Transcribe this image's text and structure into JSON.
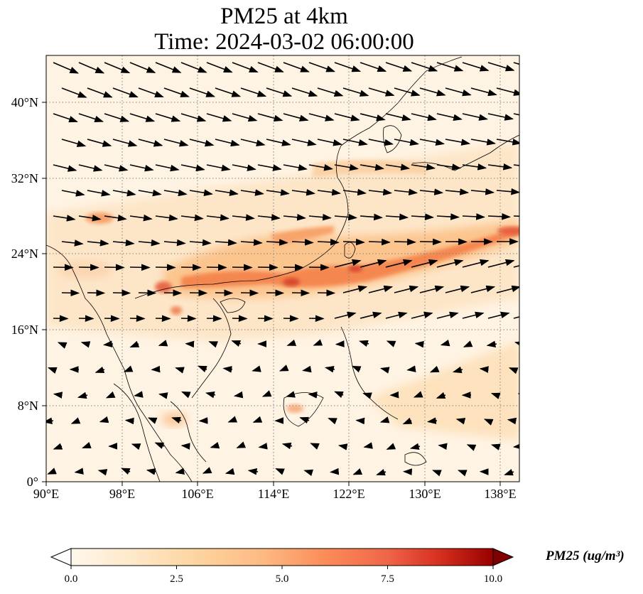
{
  "title": {
    "line1": "PM25 at 4km",
    "line2": "Time: 2024-03-02 06:00:00"
  },
  "axes": {
    "lon_ticks": [
      "90°E",
      "98°E",
      "106°E",
      "114°E",
      "122°E",
      "130°E",
      "138°E"
    ],
    "lat_ticks": [
      "0°",
      "8°N",
      "16°N",
      "24°N",
      "32°N",
      "40°N"
    ],
    "lon_range": [
      90,
      140
    ],
    "lat_range": [
      0,
      45
    ]
  },
  "colorbar": {
    "label": "PM25 (ug/m³)",
    "ticks": [
      "0.0",
      "2.5",
      "5.0",
      "7.5",
      "10.0"
    ],
    "range": [
      0,
      10
    ],
    "colormap": "OrRd",
    "extend": "both"
  },
  "colors": {
    "background": "#fff5e8",
    "low": "#fff7ec",
    "mid": "#fc8d59",
    "high": "#7f0000",
    "gridline": "#808080",
    "coastline": "#000000"
  }
}
